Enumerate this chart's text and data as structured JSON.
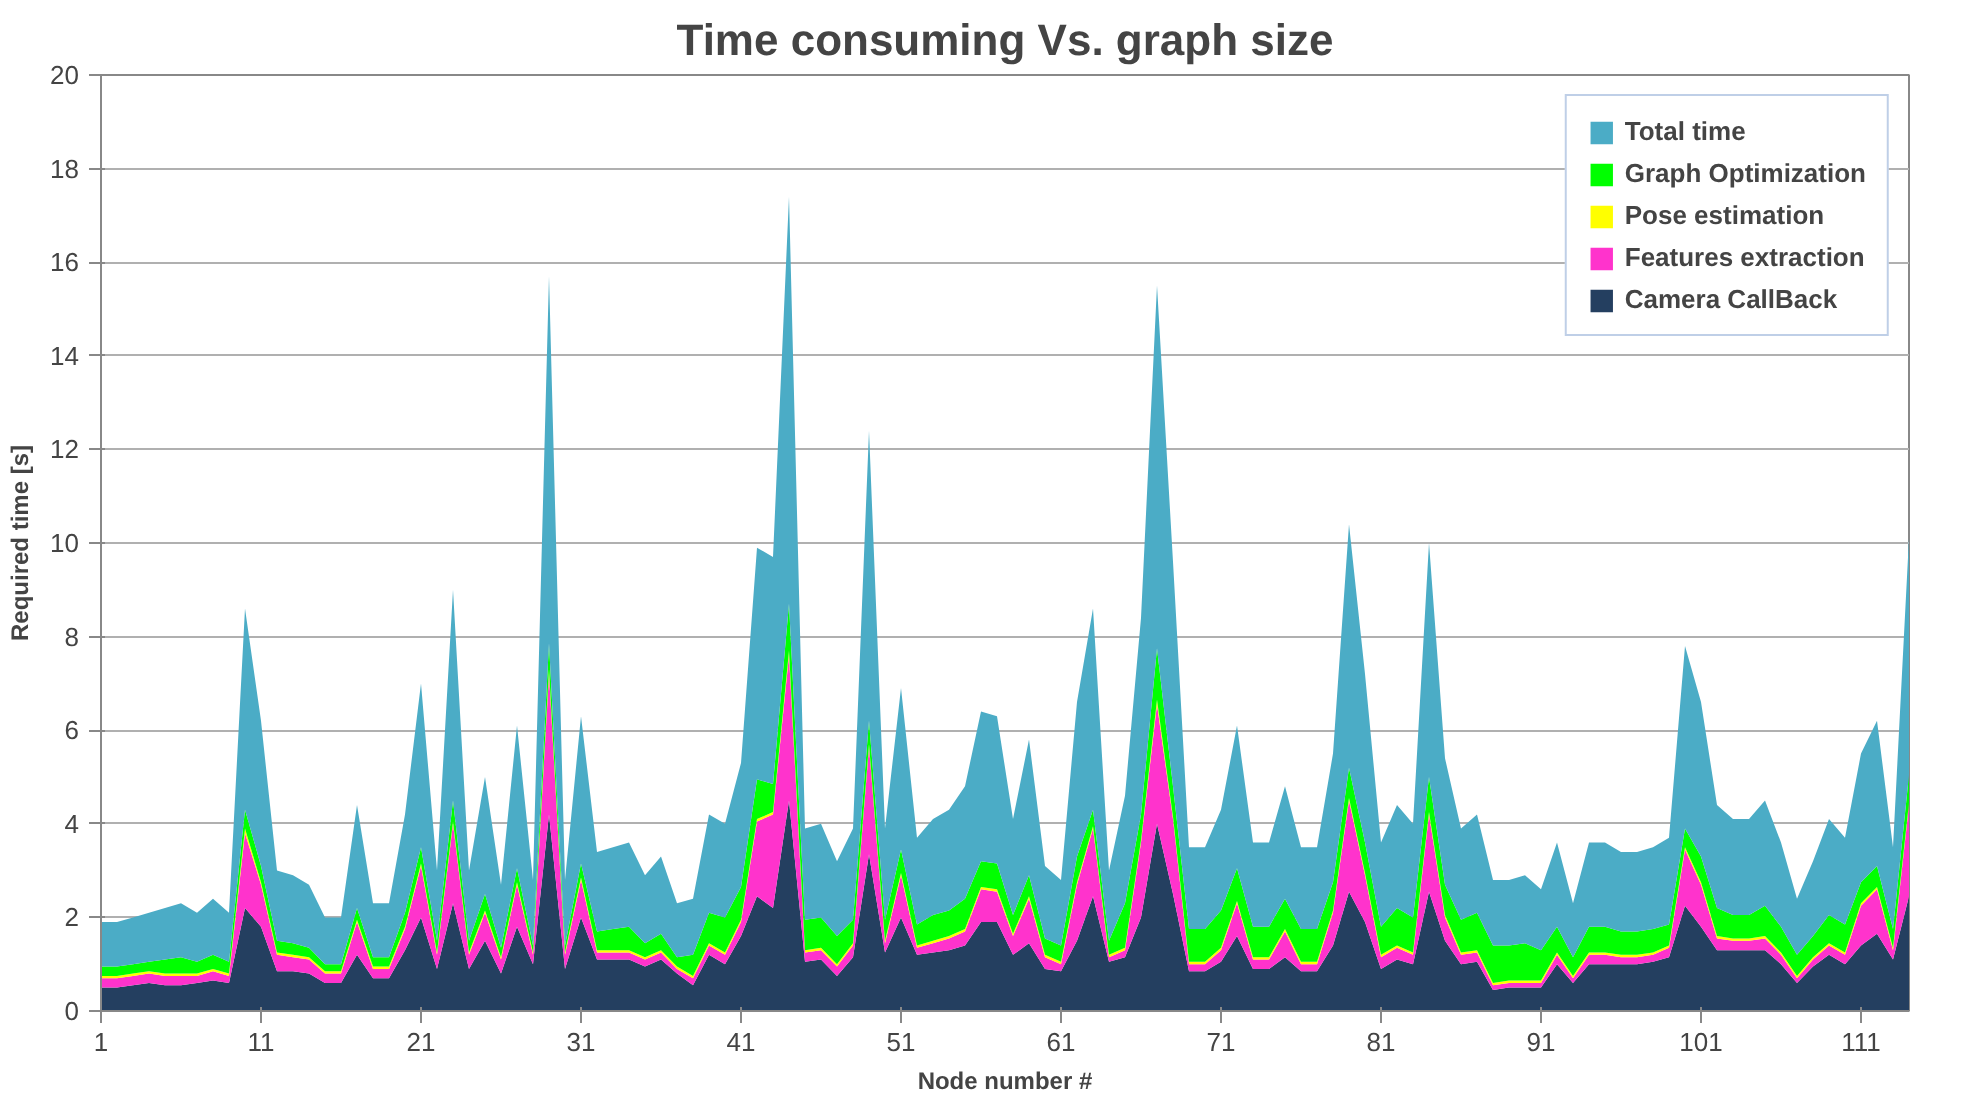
{
  "chart_data": {
    "type": "area",
    "stacked": true,
    "title": "Time consuming Vs. graph size",
    "xlabel": "Node number #",
    "ylabel": "Required time [s]",
    "x": [
      1,
      2,
      3,
      4,
      5,
      6,
      7,
      8,
      9,
      10,
      11,
      12,
      13,
      14,
      15,
      16,
      17,
      18,
      19,
      20,
      21,
      22,
      23,
      24,
      25,
      26,
      27,
      28,
      29,
      30,
      31,
      32,
      33,
      34,
      35,
      36,
      37,
      38,
      39,
      40,
      41,
      42,
      43,
      44,
      45,
      46,
      47,
      48,
      49,
      50,
      51,
      52,
      53,
      54,
      55,
      56,
      57,
      58,
      59,
      60,
      61,
      62,
      63,
      64,
      65,
      66,
      67,
      68,
      69,
      70,
      71,
      72,
      73,
      74,
      75,
      76,
      77,
      78,
      79,
      80,
      81,
      82,
      83,
      84,
      85,
      86,
      87,
      88,
      89,
      90,
      91,
      92,
      93,
      94,
      95,
      96,
      97,
      98,
      99,
      100,
      101,
      102,
      103,
      104,
      105,
      106,
      107,
      108,
      109,
      110,
      111,
      112,
      113,
      114
    ],
    "xlim": [
      1,
      114
    ],
    "xticks": [
      1,
      11,
      21,
      31,
      41,
      51,
      61,
      71,
      81,
      91,
      101,
      111
    ],
    "ylim": [
      0,
      20
    ],
    "yticks": [
      0,
      2,
      4,
      6,
      8,
      10,
      12,
      14,
      16,
      18,
      20
    ],
    "grid": "y",
    "legend": "top right",
    "series": [
      {
        "name": "Camera CallBack",
        "color": "#243f60",
        "values": [
          0.5,
          0.5,
          0.55,
          0.6,
          0.55,
          0.55,
          0.6,
          0.65,
          0.6,
          2.2,
          1.8,
          0.85,
          0.85,
          0.8,
          0.6,
          0.6,
          1.2,
          0.7,
          0.7,
          1.3,
          2.0,
          0.9,
          2.3,
          0.9,
          1.5,
          0.8,
          1.8,
          1.0,
          4.2,
          0.9,
          2.0,
          1.1,
          1.1,
          1.1,
          0.95,
          1.1,
          0.8,
          0.55,
          1.2,
          1.0,
          1.6,
          2.45,
          2.2,
          4.5,
          1.05,
          1.1,
          0.75,
          1.15,
          3.35,
          1.25,
          2.0,
          1.2,
          1.25,
          1.3,
          1.4,
          1.9,
          1.9,
          1.2,
          1.45,
          0.9,
          0.85,
          1.5,
          2.45,
          1.05,
          1.15,
          2.0,
          4.0,
          2.5,
          0.85,
          0.85,
          1.05,
          1.6,
          0.9,
          0.9,
          1.15,
          0.85,
          0.85,
          1.4,
          2.55,
          1.9,
          0.9,
          1.1,
          1.0,
          2.55,
          1.5,
          1.0,
          1.05,
          0.45,
          0.5,
          0.5,
          0.5,
          1.0,
          0.6,
          1.0,
          1.0,
          1.0,
          1.0,
          1.05,
          1.15,
          2.25,
          1.8,
          1.3,
          1.3,
          1.3,
          1.3,
          1.0,
          0.6,
          0.95,
          1.2,
          1.0,
          1.4,
          1.65,
          1.1,
          2.45
        ]
      },
      {
        "name": "Features extraction",
        "color": "#ff33cc",
        "values": [
          0.2,
          0.2,
          0.2,
          0.2,
          0.2,
          0.2,
          0.15,
          0.2,
          0.15,
          1.6,
          0.9,
          0.35,
          0.3,
          0.3,
          0.2,
          0.2,
          0.7,
          0.2,
          0.2,
          0.45,
          1.1,
          0.3,
          1.7,
          0.3,
          0.6,
          0.3,
          0.9,
          0.2,
          3.0,
          0.3,
          0.8,
          0.15,
          0.15,
          0.15,
          0.15,
          0.15,
          0.1,
          0.15,
          0.2,
          0.2,
          0.3,
          1.6,
          2.0,
          3.1,
          0.2,
          0.2,
          0.2,
          0.25,
          2.3,
          0.2,
          0.9,
          0.15,
          0.2,
          0.25,
          0.3,
          0.7,
          0.65,
          0.4,
          0.95,
          0.25,
          0.15,
          1.2,
          1.45,
          0.1,
          0.15,
          1.6,
          2.55,
          1.6,
          0.15,
          0.15,
          0.25,
          0.7,
          0.2,
          0.2,
          0.55,
          0.15,
          0.15,
          0.7,
          1.95,
          1.0,
          0.25,
          0.25,
          0.2,
          1.65,
          0.5,
          0.2,
          0.2,
          0.1,
          0.1,
          0.1,
          0.1,
          0.2,
          0.1,
          0.2,
          0.2,
          0.15,
          0.15,
          0.15,
          0.2,
          1.2,
          0.9,
          0.25,
          0.2,
          0.2,
          0.25,
          0.2,
          0.1,
          0.15,
          0.2,
          0.2,
          0.85,
          0.95,
          0.2,
          1.95
        ]
      },
      {
        "name": "Pose estimation",
        "color": "#ffff00",
        "values": [
          0.05,
          0.05,
          0.05,
          0.05,
          0.05,
          0.05,
          0.05,
          0.05,
          0.05,
          0.1,
          0.05,
          0.05,
          0.05,
          0.05,
          0.05,
          0.05,
          0.05,
          0.05,
          0.05,
          0.05,
          0.05,
          0.05,
          0.05,
          0.05,
          0.05,
          0.05,
          0.05,
          0.05,
          0.1,
          0.05,
          0.05,
          0.05,
          0.05,
          0.05,
          0.05,
          0.05,
          0.05,
          0.05,
          0.05,
          0.05,
          0.05,
          0.05,
          0.05,
          0.1,
          0.05,
          0.05,
          0.05,
          0.05,
          0.05,
          0.05,
          0.05,
          0.05,
          0.05,
          0.05,
          0.05,
          0.05,
          0.05,
          0.05,
          0.05,
          0.05,
          0.05,
          0.05,
          0.05,
          0.05,
          0.05,
          0.05,
          0.1,
          0.05,
          0.05,
          0.05,
          0.05,
          0.05,
          0.05,
          0.05,
          0.05,
          0.05,
          0.05,
          0.05,
          0.05,
          0.05,
          0.05,
          0.05,
          0.05,
          0.05,
          0.05,
          0.05,
          0.05,
          0.05,
          0.05,
          0.05,
          0.05,
          0.05,
          0.05,
          0.05,
          0.05,
          0.05,
          0.05,
          0.05,
          0.05,
          0.05,
          0.05,
          0.05,
          0.05,
          0.05,
          0.05,
          0.05,
          0.05,
          0.05,
          0.05,
          0.05,
          0.05,
          0.05,
          0.05,
          0.05
        ]
      },
      {
        "name": "Graph Optimization",
        "color": "#00ff00",
        "values": [
          0.2,
          0.2,
          0.2,
          0.2,
          0.3,
          0.35,
          0.25,
          0.3,
          0.25,
          0.4,
          0.35,
          0.25,
          0.25,
          0.2,
          0.15,
          0.15,
          0.25,
          0.2,
          0.2,
          0.3,
          0.35,
          0.25,
          0.45,
          0.25,
          0.35,
          0.2,
          0.3,
          0.15,
          0.55,
          0.15,
          0.3,
          0.4,
          0.45,
          0.5,
          0.3,
          0.35,
          0.2,
          0.45,
          0.65,
          0.75,
          0.7,
          0.85,
          0.6,
          1.0,
          0.65,
          0.65,
          0.6,
          0.5,
          0.5,
          0.45,
          0.5,
          0.45,
          0.55,
          0.55,
          0.65,
          0.55,
          0.55,
          0.4,
          0.45,
          0.35,
          0.35,
          0.55,
          0.35,
          0.3,
          0.95,
          0.55,
          1.1,
          0.65,
          0.7,
          0.7,
          0.8,
          0.7,
          0.65,
          0.65,
          0.65,
          0.7,
          0.7,
          0.6,
          0.65,
          0.65,
          0.6,
          0.8,
          0.75,
          0.75,
          0.65,
          0.7,
          0.8,
          0.8,
          0.75,
          0.8,
          0.65,
          0.55,
          0.4,
          0.55,
          0.55,
          0.5,
          0.5,
          0.5,
          0.45,
          0.4,
          0.55,
          0.6,
          0.5,
          0.5,
          0.65,
          0.55,
          0.45,
          0.45,
          0.6,
          0.6,
          0.45,
          0.45,
          0.4,
          0.6
        ]
      },
      {
        "name": "Total time",
        "color": "#4bacc6",
        "values": [
          0.95,
          0.95,
          1.0,
          1.05,
          1.1,
          1.15,
          1.05,
          1.2,
          1.05,
          4.3,
          3.1,
          1.5,
          1.45,
          1.35,
          1.0,
          1.0,
          2.2,
          1.15,
          1.15,
          2.1,
          3.5,
          1.5,
          4.5,
          1.5,
          2.5,
          1.35,
          3.05,
          1.4,
          7.85,
          1.4,
          3.15,
          1.7,
          1.75,
          1.8,
          1.45,
          1.65,
          1.15,
          1.2,
          2.1,
          2.0,
          2.65,
          4.95,
          4.85,
          8.7,
          1.95,
          2.0,
          1.6,
          1.95,
          6.2,
          1.95,
          3.45,
          1.85,
          2.05,
          2.15,
          2.4,
          3.2,
          3.15,
          2.05,
          2.9,
          1.55,
          1.4,
          3.3,
          4.3,
          1.5,
          2.3,
          4.2,
          7.75,
          4.8,
          1.75,
          1.75,
          2.15,
          3.05,
          1.8,
          1.8,
          2.4,
          1.75,
          1.75,
          2.75,
          5.2,
          3.6,
          1.8,
          2.2,
          2.0,
          5.0,
          2.7,
          1.95,
          2.1,
          1.4,
          1.4,
          1.45,
          1.3,
          1.8,
          1.15,
          1.8,
          1.8,
          1.7,
          1.7,
          1.75,
          1.85,
          3.9,
          3.3,
          2.2,
          2.05,
          2.05,
          2.25,
          1.8,
          1.2,
          1.6,
          2.05,
          1.85,
          2.75,
          3.1,
          1.75,
          5.05
        ]
      }
    ]
  }
}
